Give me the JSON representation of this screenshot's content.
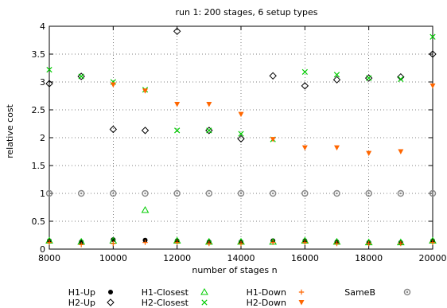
{
  "chart_data": {
    "type": "scatter",
    "title": "run 1: 200 stages, 6 setup types",
    "xlabel": "number of stages n",
    "ylabel": "relative cost",
    "xlim": [
      8000,
      20000
    ],
    "ylim": [
      0,
      4
    ],
    "x_ticks": [
      8000,
      10000,
      12000,
      14000,
      16000,
      18000,
      20000
    ],
    "y_ticks": [
      0,
      0.5,
      1,
      1.5,
      2,
      2.5,
      3,
      3.5,
      4
    ],
    "x_tick_labels": [
      "8000",
      "10000",
      "12000",
      "14000",
      "16000",
      "18000",
      "20000"
    ],
    "y_tick_labels": [
      "0",
      "0.5",
      "1",
      "1.5",
      "2",
      "2.5",
      "3",
      "3.5",
      "4"
    ],
    "grid": true,
    "legend_position": "bottom",
    "x": [
      8000,
      9000,
      10000,
      11000,
      12000,
      13000,
      14000,
      15000,
      16000,
      17000,
      18000,
      19000,
      20000
    ],
    "series": [
      {
        "name": "H1-Up",
        "marker": "filled-circle",
        "color": "#000000",
        "values": [
          0.15,
          0.13,
          0.17,
          0.16,
          0.15,
          0.13,
          0.13,
          0.15,
          0.15,
          0.13,
          0.12,
          0.12,
          0.15
        ]
      },
      {
        "name": "H2-Up",
        "marker": "open-diamond",
        "color": "#000000",
        "values": [
          2.97,
          3.1,
          2.15,
          2.13,
          3.91,
          2.13,
          1.98,
          3.11,
          2.93,
          3.04,
          3.07,
          3.09,
          3.5
        ]
      },
      {
        "name": "H1-Closest",
        "marker": "open-triangle",
        "color": "#00cc00",
        "values": [
          0.15,
          0.13,
          0.15,
          0.7,
          0.15,
          0.13,
          0.13,
          0.13,
          0.15,
          0.13,
          0.12,
          0.12,
          0.15
        ]
      },
      {
        "name": "H2-Closest",
        "marker": "x",
        "color": "#00cc00",
        "values": [
          3.22,
          3.1,
          3.0,
          2.86,
          2.13,
          2.13,
          2.07,
          1.97,
          3.18,
          3.13,
          3.07,
          3.05,
          3.81
        ]
      },
      {
        "name": "H1-Down",
        "marker": "plus",
        "color": "#ff6600",
        "values": [
          0.12,
          0.08,
          0.1,
          0.12,
          0.12,
          0.1,
          0.1,
          0.12,
          0.12,
          0.1,
          0.1,
          0.1,
          0.12
        ]
      },
      {
        "name": "H2-Down",
        "marker": "filled-triangle-down",
        "color": "#ff6600",
        "values": [
          null,
          null,
          2.95,
          2.84,
          2.6,
          2.6,
          2.42,
          1.97,
          1.82,
          1.82,
          1.72,
          1.75,
          2.93
        ]
      },
      {
        "name": "SameB",
        "marker": "open-circle-dot",
        "color": "#888888",
        "values": [
          1,
          1,
          1,
          1,
          1,
          1,
          1,
          1,
          1,
          1,
          1,
          1,
          1
        ]
      }
    ],
    "legend": [
      {
        "name": "H1-Up"
      },
      {
        "name": "H1-Closest"
      },
      {
        "name": "H1-Down"
      },
      {
        "name": "SameB"
      },
      {
        "name": "H2-Up"
      },
      {
        "name": "H2-Closest"
      },
      {
        "name": "H2-Down"
      }
    ]
  }
}
